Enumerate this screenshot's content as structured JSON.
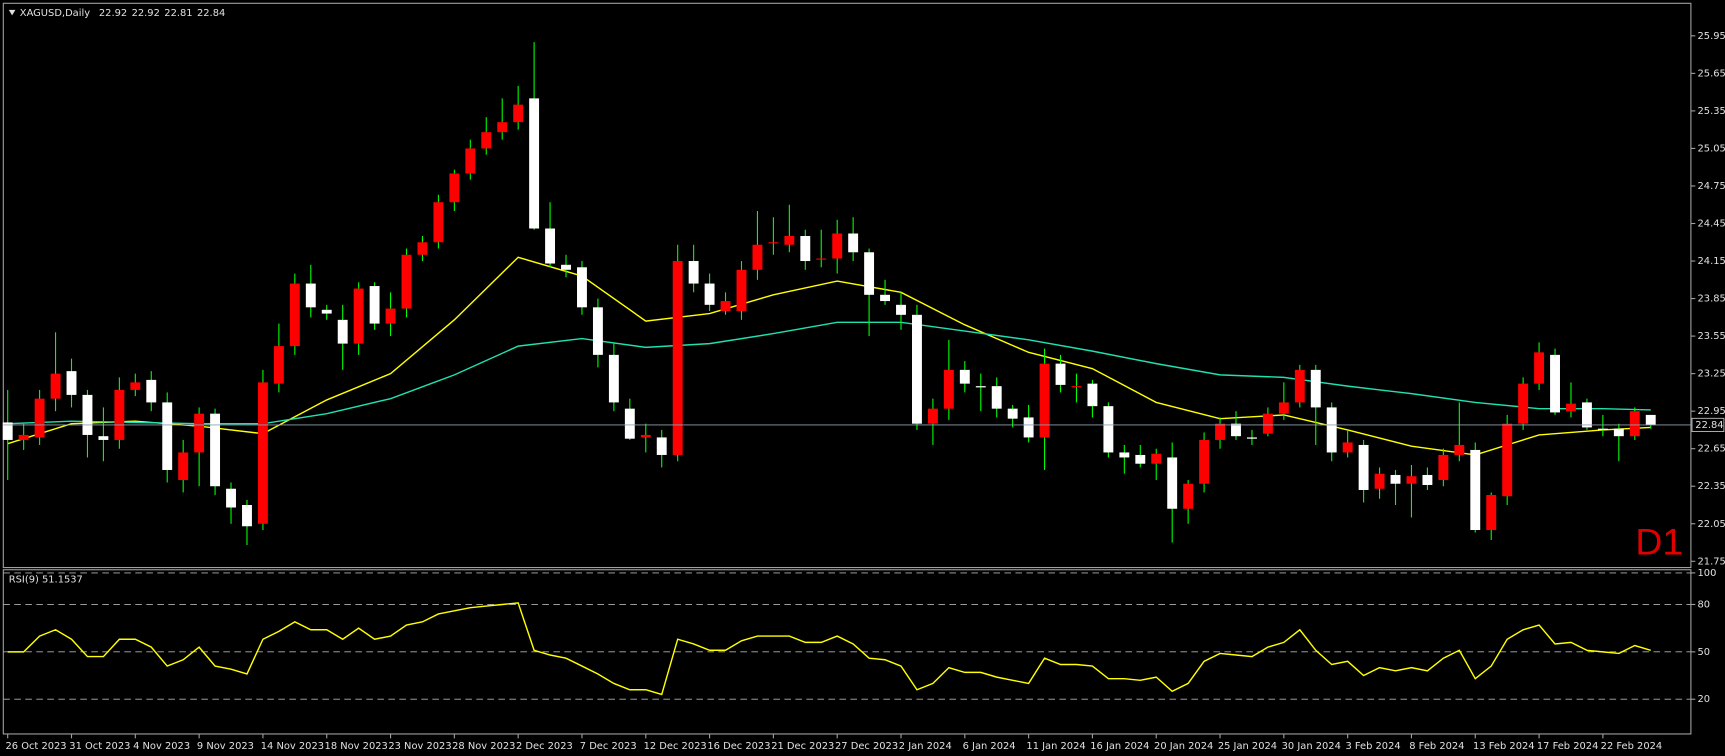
{
  "chart_data": [
    {
      "type": "candlestick",
      "title": "XAGUSD,Daily",
      "annotation": "D1",
      "categories": [
        "26 Oct 2023",
        null,
        null,
        null,
        "31 Oct 2023",
        null,
        null,
        null,
        "4 Nov 2023",
        null,
        null,
        null,
        "9 Nov 2023",
        null,
        null,
        null,
        "14 Nov 2023",
        null,
        null,
        null,
        "18 Nov 2023",
        null,
        null,
        null,
        "23 Nov 2023",
        null,
        null,
        null,
        "28 Nov 2023",
        null,
        null,
        null,
        "2 Dec 2023",
        null,
        null,
        null,
        "7 Dec 2023",
        null,
        null,
        null,
        "12 Dec 2023",
        null,
        null,
        null,
        "16 Dec 2023",
        null,
        null,
        null,
        "21 Dec 2023",
        null,
        null,
        null,
        "27 Dec 2023",
        null,
        null,
        null,
        "2 Jan 2024",
        null,
        null,
        null,
        "6 Jan 2024",
        null,
        null,
        null,
        "11 Jan 2024",
        null,
        null,
        null,
        "16 Jan 2024",
        null,
        null,
        null,
        "20 Jan 2024",
        null,
        null,
        null,
        "25 Jan 2024",
        null,
        null,
        null,
        "30 Jan 2024",
        null,
        null,
        null,
        "3 Feb 2024",
        null,
        null,
        null,
        "8 Feb 2024",
        null,
        null,
        null,
        "13 Feb 2024",
        null,
        null,
        null,
        "17 Feb 2024",
        null,
        null,
        null,
        "22 Feb 2024",
        null,
        null,
        null
      ],
      "ohlc": [
        [
          22.86,
          23.12,
          22.4,
          22.72
        ],
        [
          22.72,
          22.85,
          22.64,
          22.76
        ],
        [
          22.74,
          23.12,
          22.68,
          23.05
        ],
        [
          23.05,
          23.58,
          22.95,
          23.25
        ],
        [
          23.27,
          23.37,
          22.98,
          23.08
        ],
        [
          23.08,
          23.12,
          22.58,
          22.76
        ],
        [
          22.75,
          22.98,
          22.55,
          22.72
        ],
        [
          22.72,
          23.22,
          22.65,
          23.12
        ],
        [
          23.12,
          23.25,
          23.07,
          23.18
        ],
        [
          23.2,
          23.27,
          22.95,
          23.02
        ],
        [
          23.02,
          23.1,
          22.38,
          22.48
        ],
        [
          22.4,
          22.72,
          22.3,
          22.62
        ],
        [
          22.62,
          22.98,
          22.35,
          22.93
        ],
        [
          22.93,
          22.97,
          22.28,
          22.35
        ],
        [
          22.33,
          22.38,
          22.05,
          22.18
        ],
        [
          22.2,
          22.24,
          21.88,
          22.03
        ],
        [
          22.05,
          23.28,
          22.0,
          23.18
        ],
        [
          23.17,
          23.65,
          23.1,
          23.47
        ],
        [
          23.47,
          24.05,
          23.4,
          23.97
        ],
        [
          23.97,
          24.12,
          23.7,
          23.78
        ],
        [
          23.76,
          23.8,
          23.68,
          23.73
        ],
        [
          23.68,
          23.8,
          23.28,
          23.49
        ],
        [
          23.49,
          23.98,
          23.4,
          23.93
        ],
        [
          23.95,
          23.98,
          23.6,
          23.65
        ],
        [
          23.65,
          23.9,
          23.55,
          23.77
        ],
        [
          23.77,
          24.25,
          23.7,
          24.2
        ],
        [
          24.2,
          24.35,
          24.15,
          24.3
        ],
        [
          24.3,
          24.68,
          24.25,
          24.62
        ],
        [
          24.62,
          24.88,
          24.55,
          24.85
        ],
        [
          24.85,
          25.12,
          24.8,
          25.05
        ],
        [
          25.05,
          25.3,
          25.0,
          25.18
        ],
        [
          25.18,
          25.45,
          25.12,
          25.26
        ],
        [
          25.26,
          25.55,
          25.2,
          25.4
        ],
        [
          25.45,
          25.9,
          24.4,
          24.41
        ],
        [
          24.41,
          24.62,
          24.1,
          24.13
        ],
        [
          24.12,
          24.2,
          24.02,
          24.08
        ],
        [
          24.1,
          24.15,
          23.72,
          23.78
        ],
        [
          23.78,
          23.85,
          23.3,
          23.4
        ],
        [
          23.4,
          23.5,
          22.95,
          23.02
        ],
        [
          22.97,
          23.05,
          22.72,
          22.73
        ],
        [
          22.74,
          22.85,
          22.62,
          22.76
        ],
        [
          22.74,
          22.8,
          22.5,
          22.6
        ],
        [
          22.6,
          24.28,
          22.55,
          24.15
        ],
        [
          24.15,
          24.28,
          23.9,
          23.97
        ],
        [
          23.97,
          24.05,
          23.75,
          23.8
        ],
        [
          23.75,
          23.9,
          23.72,
          23.83
        ],
        [
          23.75,
          24.15,
          23.68,
          24.08
        ],
        [
          24.08,
          24.55,
          24.0,
          24.28
        ],
        [
          24.3,
          24.5,
          24.2,
          24.3
        ],
        [
          24.28,
          24.6,
          24.22,
          24.35
        ],
        [
          24.35,
          24.4,
          24.08,
          24.15
        ],
        [
          24.17,
          24.4,
          24.1,
          24.17
        ],
        [
          24.17,
          24.48,
          24.05,
          24.37
        ],
        [
          24.37,
          24.5,
          24.15,
          24.22
        ],
        [
          24.22,
          24.25,
          23.55,
          23.88
        ],
        [
          23.88,
          24.0,
          23.8,
          23.83
        ],
        [
          23.8,
          23.9,
          23.6,
          23.72
        ],
        [
          23.72,
          23.8,
          22.8,
          22.85
        ],
        [
          22.85,
          23.05,
          22.68,
          22.97
        ],
        [
          22.97,
          23.52,
          22.88,
          23.28
        ],
        [
          23.28,
          23.35,
          23.1,
          23.17
        ],
        [
          23.15,
          23.25,
          22.95,
          23.14
        ],
        [
          23.15,
          23.22,
          22.9,
          22.97
        ],
        [
          22.97,
          23.0,
          22.82,
          22.89
        ],
        [
          22.9,
          23.0,
          22.7,
          22.74
        ],
        [
          22.74,
          23.45,
          22.48,
          23.33
        ],
        [
          23.33,
          23.4,
          23.1,
          23.16
        ],
        [
          23.15,
          23.25,
          23.02,
          23.15
        ],
        [
          23.17,
          23.2,
          22.9,
          22.99
        ],
        [
          22.99,
          23.02,
          22.58,
          22.62
        ],
        [
          22.62,
          22.68,
          22.45,
          22.58
        ],
        [
          22.6,
          22.68,
          22.5,
          22.53
        ],
        [
          22.53,
          22.65,
          22.4,
          22.61
        ],
        [
          22.58,
          22.7,
          21.9,
          22.17
        ],
        [
          22.17,
          22.4,
          22.05,
          22.37
        ],
        [
          22.37,
          22.78,
          22.3,
          22.72
        ],
        [
          22.72,
          22.9,
          22.65,
          22.85
        ],
        [
          22.85,
          22.95,
          22.72,
          22.75
        ],
        [
          22.74,
          22.8,
          22.68,
          22.73
        ],
        [
          22.77,
          22.98,
          22.75,
          22.93
        ],
        [
          22.93,
          23.18,
          22.88,
          23.02
        ],
        [
          23.02,
          23.32,
          22.98,
          23.28
        ],
        [
          23.28,
          23.32,
          22.68,
          22.98
        ],
        [
          22.98,
          23.02,
          22.55,
          22.62
        ],
        [
          22.62,
          22.8,
          22.58,
          22.7
        ],
        [
          22.68,
          22.72,
          22.22,
          22.32
        ],
        [
          22.33,
          22.5,
          22.25,
          22.45
        ],
        [
          22.44,
          22.48,
          22.2,
          22.37
        ],
        [
          22.37,
          22.52,
          22.1,
          22.43
        ],
        [
          22.44,
          22.5,
          22.32,
          22.36
        ],
        [
          22.4,
          22.65,
          22.35,
          22.6
        ],
        [
          22.6,
          23.02,
          22.55,
          22.68
        ],
        [
          22.64,
          22.7,
          21.98,
          22.0
        ],
        [
          22.0,
          22.3,
          21.92,
          22.28
        ],
        [
          22.27,
          22.92,
          22.2,
          22.85
        ],
        [
          22.85,
          23.22,
          22.8,
          23.17
        ],
        [
          23.17,
          23.5,
          23.12,
          23.42
        ],
        [
          23.4,
          23.45,
          22.92,
          22.94
        ],
        [
          22.95,
          23.18,
          22.9,
          23.01
        ],
        [
          23.02,
          23.05,
          22.8,
          22.82
        ],
        [
          22.81,
          22.92,
          22.75,
          22.8
        ],
        [
          22.81,
          22.85,
          22.55,
          22.75
        ],
        [
          22.75,
          22.98,
          22.72,
          22.95
        ],
        [
          22.92,
          22.92,
          22.81,
          22.84
        ]
      ],
      "up_color": "#ff0000",
      "down_color": "#ffffff",
      "wick_color": "#00ff00",
      "ylim": [
        21.7,
        26.21
      ],
      "yticks": [
        25.95,
        25.65,
        25.35,
        25.05,
        24.75,
        24.45,
        24.15,
        23.85,
        23.55,
        23.25,
        22.95,
        22.65,
        22.35,
        22.05,
        21.75
      ],
      "lines": [
        {
          "color": "#ffff00",
          "x": [
            0,
            4,
            8,
            12,
            16,
            20,
            24,
            28,
            32,
            36,
            40,
            44,
            48,
            52,
            56,
            60,
            64,
            68,
            72,
            76,
            80,
            84,
            88,
            92,
            96,
            100,
            103
          ],
          "values": [
            22.69,
            22.85,
            22.87,
            22.83,
            22.77,
            23.04,
            23.25,
            23.68,
            24.18,
            24.03,
            23.67,
            23.73,
            23.88,
            23.99,
            23.9,
            23.64,
            23.42,
            23.29,
            23.02,
            22.89,
            22.92,
            22.8,
            22.67,
            22.6,
            22.76,
            22.8,
            22.82
          ]
        },
        {
          "color": "#20e0b0",
          "x": [
            0,
            4,
            8,
            12,
            16,
            20,
            24,
            28,
            32,
            36,
            40,
            44,
            48,
            52,
            56,
            60,
            64,
            68,
            72,
            76,
            80,
            84,
            88,
            92,
            96,
            100,
            103
          ],
          "values": [
            22.85,
            22.87,
            22.86,
            22.85,
            22.85,
            22.93,
            23.05,
            23.24,
            23.47,
            23.53,
            23.46,
            23.49,
            23.57,
            23.66,
            23.66,
            23.59,
            23.52,
            23.43,
            23.33,
            23.24,
            23.22,
            23.15,
            23.09,
            23.02,
            22.97,
            22.97,
            22.96
          ]
        }
      ]
    },
    {
      "type": "line",
      "title": "RSI(9) 51.1537",
      "color": "#ffff00",
      "values": [
        50,
        50,
        60,
        64,
        58,
        47,
        47,
        58,
        58,
        53,
        41,
        45,
        53,
        41,
        39,
        36,
        58,
        63,
        69,
        64,
        64,
        58,
        65,
        58,
        60,
        67,
        69,
        74,
        76,
        78,
        79,
        80,
        81,
        51,
        48,
        46,
        41,
        36,
        30,
        26,
        26,
        23,
        58,
        55,
        51,
        51,
        57,
        60,
        60,
        60,
        56,
        56,
        60,
        55,
        46,
        45,
        41,
        26,
        30,
        40,
        37,
        37,
        34,
        32,
        30,
        46,
        42,
        42,
        41,
        33,
        33,
        32,
        34,
        25,
        30,
        44,
        49,
        48,
        47,
        53,
        56,
        64,
        51,
        42,
        44,
        35,
        40,
        38,
        40,
        38,
        46,
        51,
        33,
        41,
        58,
        64,
        67,
        55,
        56,
        51,
        50,
        49,
        54,
        51
      ],
      "ylim": [
        -2,
        102
      ],
      "yticks": [
        100,
        80,
        50,
        20
      ],
      "grid": true
    }
  ]
}
